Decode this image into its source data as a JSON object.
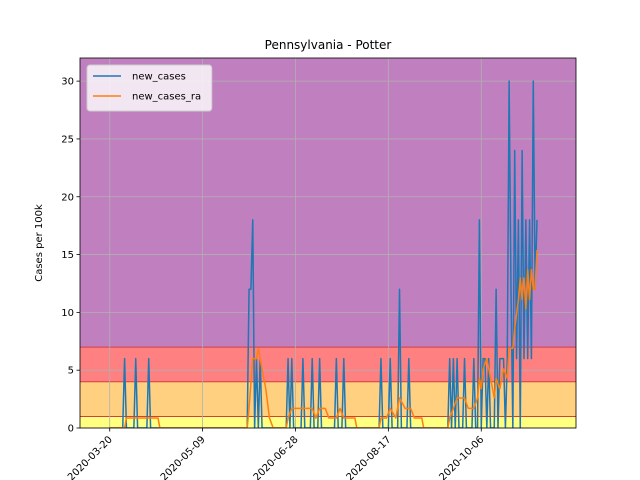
{
  "chart_data": {
    "type": "line",
    "title": "Pennsylvania - Potter",
    "xlabel": "",
    "ylabel": "Cases per 100k",
    "ylim": [
      0,
      32
    ],
    "yticks": [
      0,
      5,
      10,
      15,
      20,
      25,
      30
    ],
    "xlim": [
      "2020-03-04",
      "2020-11-26"
    ],
    "xticks": [
      "2020-03-20",
      "2020-05-09",
      "2020-06-28",
      "2020-08-17",
      "2020-10-06"
    ],
    "grid": true,
    "legend_position": "top-left",
    "bands": [
      {
        "from": 0,
        "to": 1,
        "color": "#ffff80"
      },
      {
        "from": 1,
        "to": 4,
        "color": "#ffd080"
      },
      {
        "from": 4,
        "to": 7,
        "color": "#ff8080"
      },
      {
        "from": 7,
        "to": 32,
        "color": "#c080c0"
      }
    ],
    "series": [
      {
        "name": "new_cases",
        "color": "#1f77b4",
        "points": [
          [
            "2020-03-20",
            0
          ],
          [
            "2020-03-27",
            0
          ],
          [
            "2020-03-28",
            6
          ],
          [
            "2020-03-29",
            0
          ],
          [
            "2020-04-02",
            0
          ],
          [
            "2020-04-03",
            6
          ],
          [
            "2020-04-04",
            0
          ],
          [
            "2020-04-09",
            0
          ],
          [
            "2020-04-10",
            6
          ],
          [
            "2020-04-11",
            0
          ],
          [
            "2020-06-02",
            0
          ],
          [
            "2020-06-03",
            12
          ],
          [
            "2020-06-04",
            12
          ],
          [
            "2020-06-05",
            18
          ],
          [
            "2020-06-06",
            0
          ],
          [
            "2020-06-07",
            6
          ],
          [
            "2020-06-08",
            0
          ],
          [
            "2020-06-09",
            6
          ],
          [
            "2020-06-10",
            0
          ],
          [
            "2020-06-11",
            0
          ],
          [
            "2020-06-12",
            0
          ],
          [
            "2020-06-23",
            0
          ],
          [
            "2020-06-24",
            6
          ],
          [
            "2020-06-25",
            0
          ],
          [
            "2020-06-26",
            6
          ],
          [
            "2020-06-27",
            0
          ],
          [
            "2020-07-01",
            0
          ],
          [
            "2020-07-02",
            6
          ],
          [
            "2020-07-03",
            0
          ],
          [
            "2020-07-06",
            0
          ],
          [
            "2020-07-07",
            6
          ],
          [
            "2020-07-08",
            0
          ],
          [
            "2020-07-10",
            0
          ],
          [
            "2020-07-11",
            6
          ],
          [
            "2020-07-12",
            0
          ],
          [
            "2020-07-19",
            0
          ],
          [
            "2020-07-20",
            6
          ],
          [
            "2020-07-21",
            0
          ],
          [
            "2020-07-23",
            0
          ],
          [
            "2020-07-24",
            6
          ],
          [
            "2020-07-25",
            0
          ],
          [
            "2020-08-12",
            0
          ],
          [
            "2020-08-13",
            6
          ],
          [
            "2020-08-14",
            0
          ],
          [
            "2020-08-17",
            0
          ],
          [
            "2020-08-18",
            6
          ],
          [
            "2020-08-19",
            0
          ],
          [
            "2020-08-22",
            0
          ],
          [
            "2020-08-23",
            12
          ],
          [
            "2020-08-24",
            0
          ],
          [
            "2020-08-27",
            0
          ],
          [
            "2020-08-28",
            6
          ],
          [
            "2020-08-29",
            0
          ],
          [
            "2020-09-18",
            0
          ],
          [
            "2020-09-19",
            6
          ],
          [
            "2020-09-20",
            0
          ],
          [
            "2020-09-21",
            6
          ],
          [
            "2020-09-22",
            0
          ],
          [
            "2020-09-23",
            6
          ],
          [
            "2020-09-24",
            0
          ],
          [
            "2020-09-26",
            0
          ],
          [
            "2020-09-27",
            6
          ],
          [
            "2020-09-28",
            0
          ],
          [
            "2020-10-01",
            0
          ],
          [
            "2020-10-02",
            6
          ],
          [
            "2020-10-03",
            0
          ],
          [
            "2020-10-04",
            0
          ],
          [
            "2020-10-05",
            18
          ],
          [
            "2020-10-06",
            0
          ],
          [
            "2020-10-07",
            6
          ],
          [
            "2020-10-08",
            6
          ],
          [
            "2020-10-09",
            0
          ],
          [
            "2020-10-10",
            6
          ],
          [
            "2020-10-11",
            0
          ],
          [
            "2020-10-13",
            0
          ],
          [
            "2020-10-14",
            12
          ],
          [
            "2020-10-15",
            0
          ],
          [
            "2020-10-16",
            6
          ],
          [
            "2020-10-17",
            6
          ],
          [
            "2020-10-18",
            6
          ],
          [
            "2020-10-19",
            0
          ],
          [
            "2020-10-20",
            6
          ],
          [
            "2020-10-21",
            30
          ],
          [
            "2020-10-22",
            12
          ],
          [
            "2020-10-23",
            0
          ],
          [
            "2020-10-24",
            24
          ],
          [
            "2020-10-25",
            6
          ],
          [
            "2020-10-26",
            18
          ],
          [
            "2020-10-27",
            0
          ],
          [
            "2020-10-28",
            24
          ],
          [
            "2020-10-29",
            6
          ],
          [
            "2020-10-30",
            18
          ],
          [
            "2020-10-31",
            6
          ],
          [
            "2020-11-01",
            18
          ],
          [
            "2020-11-02",
            6
          ],
          [
            "2020-11-03",
            30
          ],
          [
            "2020-11-04",
            12
          ],
          [
            "2020-11-05",
            18
          ]
        ]
      },
      {
        "name": "new_cases_ra",
        "color": "#ff7f0e",
        "points": [
          [
            "2020-03-20",
            0
          ],
          [
            "2020-03-28",
            0
          ],
          [
            "2020-03-29",
            0.86
          ],
          [
            "2020-04-14",
            0.86
          ],
          [
            "2020-04-15",
            0.86
          ],
          [
            "2020-04-16",
            0
          ],
          [
            "2020-06-02",
            0
          ],
          [
            "2020-06-03",
            1.7
          ],
          [
            "2020-06-05",
            6
          ],
          [
            "2020-06-07",
            6
          ],
          [
            "2020-06-08",
            6.9
          ],
          [
            "2020-06-10",
            5.1
          ],
          [
            "2020-06-12",
            3.4
          ],
          [
            "2020-06-14",
            0.86
          ],
          [
            "2020-06-16",
            0
          ],
          [
            "2020-06-23",
            0
          ],
          [
            "2020-06-24",
            0.86
          ],
          [
            "2020-06-26",
            1.7
          ],
          [
            "2020-07-07",
            1.7
          ],
          [
            "2020-07-09",
            0.86
          ],
          [
            "2020-07-11",
            1.7
          ],
          [
            "2020-07-14",
            1.7
          ],
          [
            "2020-07-16",
            0.86
          ],
          [
            "2020-07-20",
            0.86
          ],
          [
            "2020-07-22",
            1.7
          ],
          [
            "2020-07-24",
            0.86
          ],
          [
            "2020-07-30",
            0.86
          ],
          [
            "2020-07-31",
            0
          ],
          [
            "2020-08-12",
            0
          ],
          [
            "2020-08-13",
            0.86
          ],
          [
            "2020-08-16",
            0.86
          ],
          [
            "2020-08-18",
            1.7
          ],
          [
            "2020-08-21",
            0.86
          ],
          [
            "2020-08-23",
            2.6
          ],
          [
            "2020-08-26",
            1.7
          ],
          [
            "2020-08-29",
            1.7
          ],
          [
            "2020-08-31",
            0.86
          ],
          [
            "2020-09-04",
            0.86
          ],
          [
            "2020-09-05",
            0
          ],
          [
            "2020-09-18",
            0
          ],
          [
            "2020-09-19",
            0.86
          ],
          [
            "2020-09-21",
            1.7
          ],
          [
            "2020-09-23",
            2.6
          ],
          [
            "2020-09-27",
            2.6
          ],
          [
            "2020-09-29",
            1.7
          ],
          [
            "2020-10-02",
            1.7
          ],
          [
            "2020-10-04",
            2.6
          ],
          [
            "2020-10-05",
            4.3
          ],
          [
            "2020-10-06",
            3.4
          ],
          [
            "2020-10-07",
            5.1
          ],
          [
            "2020-10-09",
            6
          ],
          [
            "2020-10-11",
            4.3
          ],
          [
            "2020-10-13",
            2.6
          ],
          [
            "2020-10-14",
            4.3
          ],
          [
            "2020-10-16",
            3.4
          ],
          [
            "2020-10-18",
            5.1
          ],
          [
            "2020-10-20",
            4.3
          ],
          [
            "2020-10-21",
            6.9
          ],
          [
            "2020-10-23",
            6.9
          ],
          [
            "2020-10-24",
            8.6
          ],
          [
            "2020-10-26",
            11.1
          ],
          [
            "2020-10-27",
            13
          ],
          [
            "2020-10-28",
            11.1
          ],
          [
            "2020-10-29",
            13
          ],
          [
            "2020-10-30",
            10.3
          ],
          [
            "2020-10-31",
            13.7
          ],
          [
            "2020-11-01",
            11.1
          ],
          [
            "2020-11-02",
            13.7
          ],
          [
            "2020-11-03",
            12
          ],
          [
            "2020-11-04",
            12
          ],
          [
            "2020-11-05",
            15.4
          ]
        ]
      }
    ]
  }
}
